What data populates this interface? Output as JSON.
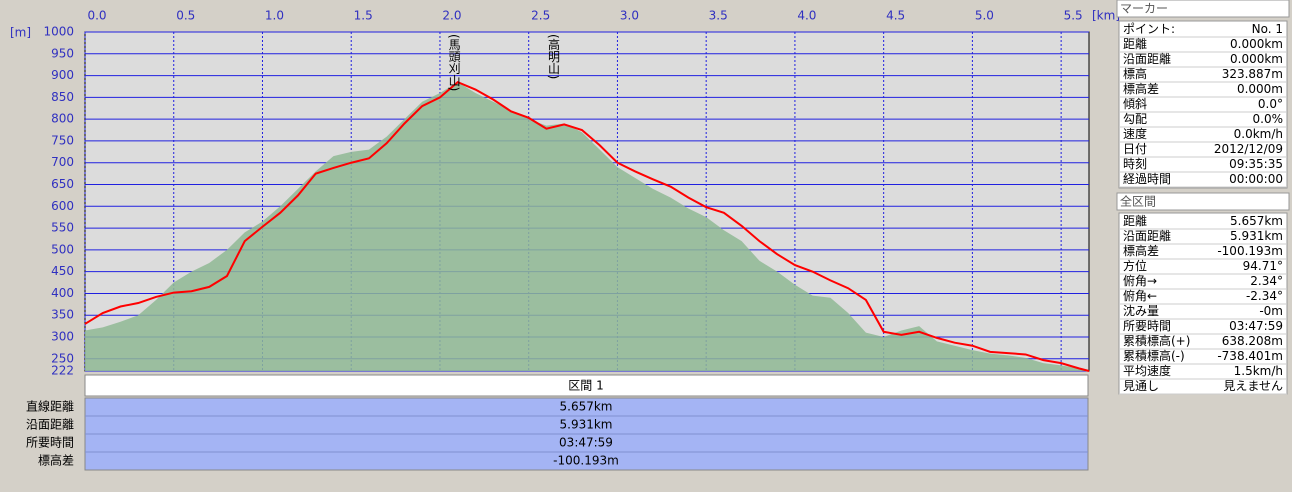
{
  "chart_data": {
    "type": "line",
    "x_unit": "[km]",
    "y_unit": "[m]",
    "xlim": [
      0,
      5.657
    ],
    "xticks": [
      {
        "value": 0,
        "label": "0.0"
      },
      0.5,
      {
        "value": 1,
        "label": "1.0"
      },
      1.5,
      {
        "value": 2,
        "label": "2.0"
      },
      2.5,
      {
        "value": 3,
        "label": "3.0"
      },
      3.5,
      {
        "value": 4,
        "label": "4.0"
      },
      4.5,
      {
        "value": 5,
        "label": "5.0"
      },
      5.5
    ],
    "ylim": [
      222,
      1000
    ],
    "yticks": [
      222,
      250,
      300,
      350,
      400,
      450,
      500,
      550,
      600,
      650,
      700,
      750,
      800,
      850,
      900,
      950,
      1000
    ],
    "grid": true,
    "x": [
      0,
      0.1,
      0.2,
      0.3,
      0.4,
      0.5,
      0.6,
      0.7,
      0.8,
      0.9,
      1,
      1.1,
      1.2,
      1.3,
      1.4,
      1.5,
      1.6,
      1.7,
      1.8,
      1.9,
      2,
      2.1,
      2.2,
      2.3,
      2.4,
      2.5,
      2.6,
      2.7,
      2.8,
      2.9,
      3,
      3.1,
      3.2,
      3.3,
      3.4,
      3.5,
      3.6,
      3.7,
      3.8,
      3.9,
      4,
      4.1,
      4.2,
      4.3,
      4.4,
      4.5,
      4.6,
      4.7,
      4.8,
      4.9,
      5,
      5.1,
      5.2,
      5.3,
      5.4,
      5.5,
      5.6,
      5.657
    ],
    "series": [
      {
        "color": "#8fb894",
        "fill": true,
        "values": [
          315,
          322,
          335,
          350,
          385,
          425,
          450,
          470,
          500,
          540,
          565,
          600,
          640,
          680,
          715,
          725,
          730,
          760,
          800,
          840,
          860,
          885,
          860,
          840,
          820,
          800,
          785,
          790,
          770,
          730,
          690,
          665,
          640,
          620,
          595,
          575,
          545,
          520,
          475,
          450,
          420,
          395,
          390,
          355,
          310,
          300,
          315,
          325,
          290,
          280,
          270,
          262,
          258,
          252,
          240,
          235,
          228,
          222
        ]
      },
      {
        "color": "#ff0000",
        "values": [
          330,
          355,
          370,
          378,
          392,
          402,
          405,
          415,
          440,
          520,
          553,
          585,
          625,
          675,
          688,
          700,
          710,
          745,
          790,
          830,
          850,
          885,
          868,
          845,
          818,
          803,
          778,
          788,
          775,
          740,
          700,
          680,
          662,
          645,
          620,
          598,
          585,
          555,
          520,
          490,
          465,
          450,
          430,
          412,
          385,
          312,
          305,
          312,
          298,
          287,
          280,
          266,
          263,
          260,
          247,
          240,
          228,
          222
        ]
      }
    ],
    "annotations": [
      {
        "text": "(馬頭刈山)",
        "x": 2.08
      },
      {
        "text": "(高明山)",
        "x": 2.64
      }
    ]
  },
  "section_table": {
    "header": "区間 1",
    "rows": [
      [
        "直線距離",
        "5.657km"
      ],
      [
        "沿面距離",
        "5.931km"
      ],
      [
        "所要時間",
        "03:47:59"
      ],
      [
        "標高差",
        "-100.193m"
      ]
    ]
  },
  "marker_panel": {
    "title": "マーカー",
    "rows": [
      [
        "ポイント:",
        "No. 1"
      ],
      [
        "距離",
        "0.000km"
      ],
      [
        "沿面距離",
        "0.000km"
      ],
      [
        "標高",
        "323.887m"
      ],
      [
        "標高差",
        "0.000m"
      ],
      [
        "傾斜",
        "0.0°"
      ],
      [
        "勾配",
        "0.0%"
      ],
      [
        "速度",
        "0.0km/h"
      ],
      [
        "日付",
        "2012/12/09"
      ],
      [
        "時刻",
        "09:35:35"
      ],
      [
        "経過時間",
        "00:00:00"
      ]
    ]
  },
  "total_panel": {
    "title": "全区間",
    "rows": [
      [
        "距離",
        "5.657km"
      ],
      [
        "沿面距離",
        "5.931km"
      ],
      [
        "標高差",
        "-100.193m"
      ],
      [
        "方位",
        "94.71°"
      ],
      [
        "俯角→",
        "2.34°"
      ],
      [
        "俯角←",
        "-2.34°"
      ],
      [
        "沈み量",
        "-0m"
      ],
      [
        "所要時間",
        "03:47:59"
      ],
      [
        "累積標高(+)",
        "638.208m"
      ],
      [
        "累積標高(-)",
        "-738.401m"
      ],
      [
        "平均速度",
        "1.5km/h"
      ],
      [
        "見通し",
        "見えません"
      ]
    ]
  }
}
